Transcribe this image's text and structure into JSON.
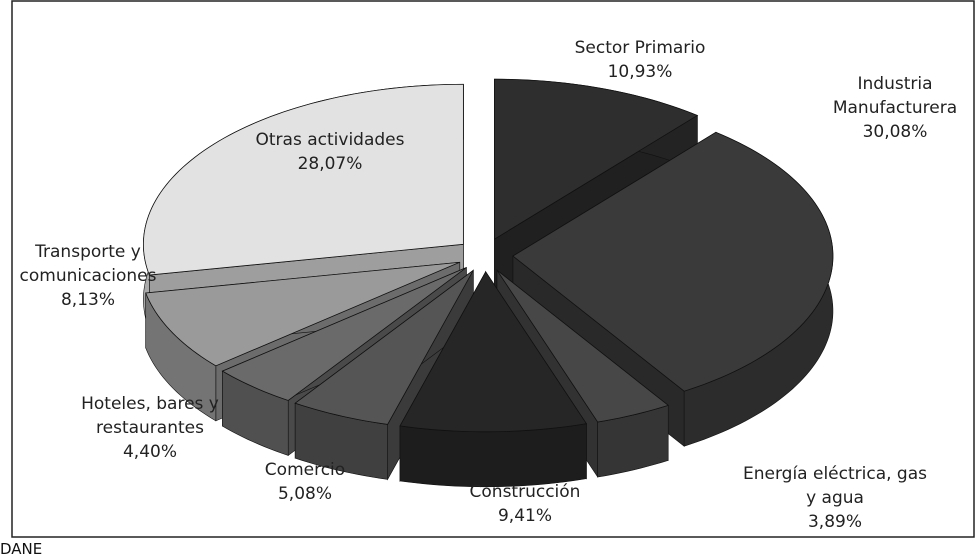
{
  "chart_data": {
    "type": "pie",
    "categories": [
      "Sector Primario",
      "Industria Manufacturera",
      "Energía eléctrica, gas y agua",
      "Construcción",
      "Comercio",
      "Hoteles, bares y restaurantes",
      "Transporte y comunicaciones",
      "Otras actividades"
    ],
    "values": [
      10.93,
      30.08,
      3.89,
      9.41,
      5.08,
      4.4,
      8.13,
      28.07
    ],
    "value_labels": [
      "10,93%",
      "30,08%",
      "3,89%",
      "9,41%",
      "5,08%",
      "4,40%",
      "8,13%",
      "28,07%"
    ],
    "colors": [
      "#2e2e2e",
      "#3a3a3a",
      "#474747",
      "#262626",
      "#555555",
      "#6a6a6a",
      "#9a9a9a",
      "#e2e2e2"
    ],
    "source": "DANE"
  }
}
